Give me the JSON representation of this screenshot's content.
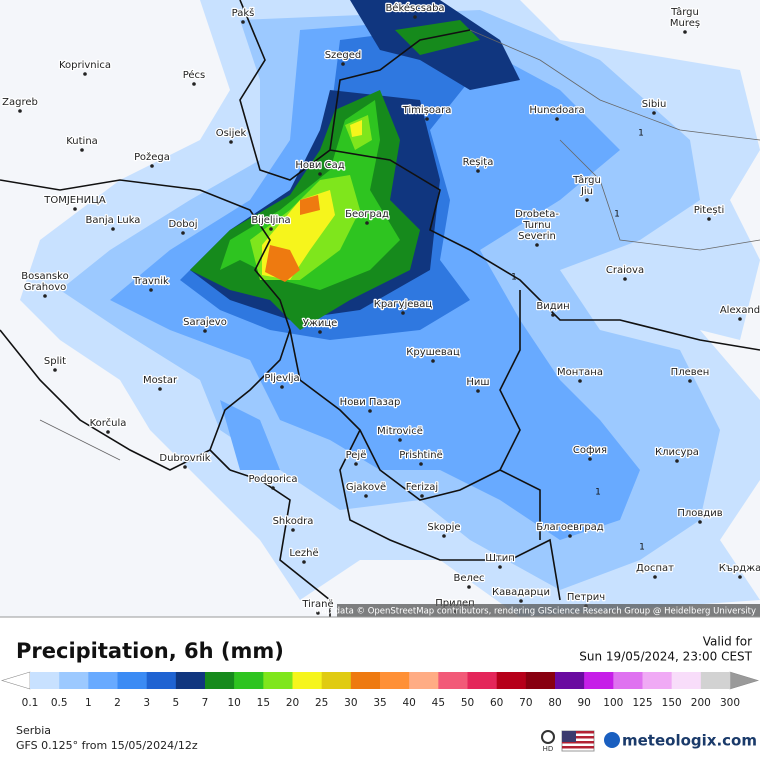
{
  "header": {
    "title": "Precipitation, 6h (mm)",
    "valid_label": "Valid for",
    "valid_time": "Sun 19/05/2024, 23:00 CEST"
  },
  "legend": {
    "ticks": [
      0.1,
      0.5,
      1,
      2,
      3,
      5,
      7,
      10,
      15,
      20,
      25,
      30,
      35,
      40,
      45,
      50,
      60,
      70,
      80,
      90,
      100,
      125,
      150,
      200,
      300
    ],
    "colors": [
      "#c8e1ff",
      "#9cc9ff",
      "#68aaff",
      "#3b8bf4",
      "#1f63d2",
      "#10367f",
      "#168a1c",
      "#2ec420",
      "#7fe61c",
      "#f6f51c",
      "#e0cb12",
      "#ee7a10",
      "#ff9036",
      "#ffac84",
      "#f25a78",
      "#e4265a",
      "#b6001a",
      "#880010",
      "#6a0aa0",
      "#c61ee8",
      "#df72f0",
      "#f0aaf5",
      "#f8ddfa",
      "#d2d2d2"
    ],
    "under_color": "#ffffff",
    "over_color": "#9a9a9a"
  },
  "footer": {
    "region": "Serbia",
    "model": "GFS 0.125° from  15/05/2024/12z",
    "hd": "HD",
    "brand": "meteologix.com"
  },
  "map": {
    "attribution": "Map data © OpenStreetMap contributors, rendering GIScience Research Group @ Heidelberg University",
    "labels": [
      "Pakš",
      "Békéscsaba",
      "Târgu",
      "Mureș",
      "Szeged",
      "Koprivnica",
      "Pécs",
      "Zagreb",
      "Timișoara",
      "Hunedoara",
      "Sibiu",
      "Osijek",
      "Kutina",
      "Požega",
      "Нови Сад",
      "Reșița",
      "Târgu",
      "Jiu",
      "ТОМЈЕНИЦА",
      "Banja Luka",
      "Bijeljina",
      "Београд",
      "Drobeta-",
      "Turnu",
      "Severin",
      "Pitești",
      "Doboj",
      "Craiova",
      "Travnik",
      "Bosansko",
      "Grahovo",
      "Крагујевац",
      "Видин",
      "Alexand",
      "Sarajevo",
      "Ужице",
      "Крушевац",
      "Split",
      "Монтана",
      "Плевен",
      "Mostar",
      "Pljevlja",
      "Ниш",
      "Нови Пазар",
      "Korčula",
      "Mitrovicë",
      "Pejë",
      "Prishtinë",
      "София",
      "Клисура",
      "Dubrovnik",
      "Podgorica",
      "Gjakovë",
      "Ferizaj",
      "Shkodra",
      "Skopje",
      "Благоевград",
      "Пловдив",
      "Lezhë",
      "Штип",
      "Велес",
      "Доспат",
      "Кърджа",
      "Кавадарци",
      "Tiranë",
      "Прилеп",
      "Петрич"
    ],
    "contour_labels": [
      "1",
      "1",
      "1",
      "1",
      "1"
    ]
  }
}
